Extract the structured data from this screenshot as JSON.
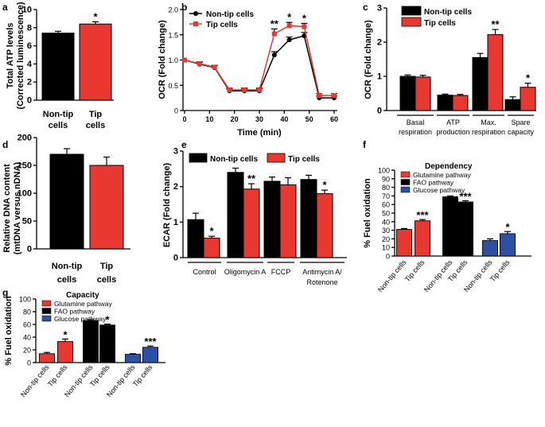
{
  "colors": {
    "non_tip": "#000000",
    "tip": "#e8382f",
    "glucose": "#2e4fa6",
    "fao": "#000000",
    "glutamine": "#e8382f"
  },
  "panels": [
    {
      "letter": "a"
    },
    {
      "letter": "b"
    },
    {
      "letter": "c"
    },
    {
      "letter": "d"
    },
    {
      "letter": "e"
    },
    {
      "letter": "f"
    },
    {
      "letter": "g"
    }
  ],
  "chart_data": [
    {
      "id": "a",
      "type": "bar",
      "ylabel_line1": "Total ATP levels",
      "ylabel_line2": "(Corrected luminescence)",
      "ylim": [
        0,
        10
      ],
      "yticks": [
        "0",
        "2",
        "4",
        "6",
        "8",
        "10"
      ],
      "categories": [
        "Non-tip cells",
        "Tip cells"
      ],
      "cat_lines": [
        [
          "Non-tip",
          "cells"
        ],
        [
          "Tip",
          "cells"
        ]
      ],
      "values": [
        7.4,
        8.4
      ],
      "errors": [
        0.2,
        0.25
      ],
      "colors": [
        "non_tip",
        "tip"
      ],
      "sig": [
        "",
        "*"
      ]
    },
    {
      "id": "b",
      "type": "line",
      "title": "",
      "xlabel": "Time (min)",
      "ylabel": "OCR (Fold change)",
      "ylim": [
        0,
        2.0
      ],
      "yticks": [
        "0",
        "0.5",
        "1.0",
        "1.5",
        "2.0"
      ],
      "xlim": [
        0,
        60
      ],
      "xticks": [
        "0",
        "10",
        "20",
        "30",
        "40",
        "50",
        "60"
      ],
      "x": [
        0,
        6,
        12,
        18,
        24,
        30,
        36,
        42,
        48,
        54,
        60
      ],
      "series": [
        {
          "name": "Non-tip cells",
          "color": "non_tip",
          "marker": "circle",
          "values": [
            1.0,
            0.92,
            0.85,
            0.39,
            0.39,
            0.39,
            1.1,
            1.4,
            1.48,
            0.25,
            0.25
          ],
          "errors": [
            0,
            0.02,
            0.02,
            0.02,
            0.02,
            0.02,
            0.05,
            0.04,
            0.05,
            0.02,
            0.02
          ]
        },
        {
          "name": "Tip cells",
          "color": "tip",
          "marker": "square",
          "values": [
            1.0,
            0.93,
            0.86,
            0.41,
            0.41,
            0.41,
            1.52,
            1.68,
            1.66,
            0.3,
            0.3
          ],
          "errors": [
            0,
            0.02,
            0.02,
            0.02,
            0.02,
            0.02,
            0.08,
            0.05,
            0.05,
            0.02,
            0.02
          ]
        }
      ],
      "annotations": [
        {
          "x": 36,
          "text": "**"
        },
        {
          "x": 42,
          "text": "*"
        },
        {
          "x": 48,
          "text": "*"
        }
      ]
    },
    {
      "id": "c",
      "type": "bar",
      "ylabel": "OCR (Fold change)",
      "ylim": [
        0,
        3
      ],
      "yticks": [
        "0",
        "1",
        "2",
        "3"
      ],
      "categories": [
        "Basal respiration",
        "ATP production",
        "Max. respiration",
        "Spare capacity"
      ],
      "cat_lines": [
        [
          "Basal",
          "respiration"
        ],
        [
          "ATP",
          "production"
        ],
        [
          "Max.",
          "respiration"
        ],
        [
          "Spare",
          "capacity"
        ]
      ],
      "series": [
        {
          "name": "Non-tip cells",
          "color": "non_tip",
          "values": [
            1.0,
            0.45,
            1.55,
            0.32
          ],
          "errors": [
            0.04,
            0.03,
            0.12,
            0.08
          ]
        },
        {
          "name": "Tip cells",
          "color": "tip",
          "values": [
            0.98,
            0.44,
            2.22,
            0.68
          ],
          "errors": [
            0.05,
            0.03,
            0.15,
            0.12
          ]
        }
      ],
      "sig": [
        "",
        "",
        "**",
        "*"
      ]
    },
    {
      "id": "d",
      "type": "bar",
      "ylabel_line1": "Relative DNA content",
      "ylabel_line2": "(mtDNA versus nDNA)",
      "ylim": [
        0,
        200
      ],
      "yticks": [
        "0",
        "50",
        "100",
        "150",
        "200"
      ],
      "categories": [
        "Non-tip cells",
        "Tip cells"
      ],
      "cat_lines": [
        [
          "Non-tip",
          "cells"
        ],
        [
          "Tip",
          "cells"
        ]
      ],
      "values": [
        170,
        150
      ],
      "errors": [
        10,
        15
      ],
      "colors": [
        "non_tip",
        "tip"
      ]
    },
    {
      "id": "e",
      "type": "bar",
      "ylabel": "ECAR (Fold change)",
      "ylim": [
        0,
        3
      ],
      "yticks": [
        "0",
        "1",
        "2",
        "3"
      ],
      "categories": [
        "Control",
        "Oligomycin A",
        "FCCP",
        "Antimycin A/ Rotenone"
      ],
      "cat_lines": [
        [
          "Control"
        ],
        [
          "Oligomycin A"
        ],
        [
          "FCCP"
        ],
        [
          "Antimycin A/",
          "Rotenone"
        ]
      ],
      "series": [
        {
          "name": "Non-tip cells",
          "color": "non_tip",
          "values": [
            1.07,
            2.4,
            2.15,
            2.2
          ],
          "errors": [
            0.18,
            0.12,
            0.12,
            0.12
          ]
        },
        {
          "name": "Tip cells",
          "color": "tip",
          "values": [
            0.55,
            1.93,
            2.05,
            1.8
          ],
          "errors": [
            0.05,
            0.15,
            0.2,
            0.1
          ]
        }
      ],
      "sig": [
        "*",
        "**",
        "",
        "*"
      ]
    },
    {
      "id": "f",
      "type": "bar",
      "ylabel": "% Fuel oxidation",
      "legend_title": "Dependency",
      "legend": [
        {
          "name": "Glutamine pathway",
          "color": "glutamine"
        },
        {
          "name": "FAO pathway",
          "color": "fao"
        },
        {
          "name": "Glucose pathway",
          "color": "glucose"
        }
      ],
      "ylim": [
        0,
        100
      ],
      "yticks": [
        "0",
        "10",
        "20",
        "30",
        "40",
        "50",
        "60",
        "70",
        "80",
        "90",
        "100"
      ],
      "categories": [
        "Non-tip cells",
        "Tip cells",
        "Non-tip cells",
        "Tip cells",
        "Non-tip cells",
        "Tip cells"
      ],
      "values": [
        31,
        41,
        69,
        63,
        18,
        26
      ],
      "errors": [
        1,
        1.5,
        1,
        1.5,
        2,
        2.5
      ],
      "colors": [
        "glutamine",
        "glutamine",
        "fao",
        "fao",
        "glucose",
        "glucose"
      ],
      "sig": [
        "",
        "***",
        "",
        "***",
        "",
        "*"
      ]
    },
    {
      "id": "g",
      "type": "bar",
      "ylabel": "% Fuel oxidation",
      "legend_title": "Capacity",
      "legend": [
        {
          "name": "Glutamine pathway",
          "color": "glutamine"
        },
        {
          "name": "FAO pathway",
          "color": "fao"
        },
        {
          "name": "Glucose pathway",
          "color": "glucose"
        }
      ],
      "ylim": [
        0,
        100
      ],
      "yticks": [
        "0",
        "20",
        "40",
        "60",
        "80",
        "100"
      ],
      "categories": [
        "Non-tip cells",
        "Tip cells",
        "Non-tip cells",
        "Tip cells",
        "Non-tip cells",
        "Tip cells"
      ],
      "values": [
        14,
        33,
        66,
        59,
        13,
        24
      ],
      "errors": [
        2,
        4,
        1.5,
        1.5,
        1,
        2
      ],
      "colors": [
        "glutamine",
        "glutamine",
        "fao",
        "fao",
        "glucose",
        "glucose"
      ],
      "sig": [
        "",
        "*",
        "",
        "*",
        "",
        "***"
      ]
    }
  ]
}
